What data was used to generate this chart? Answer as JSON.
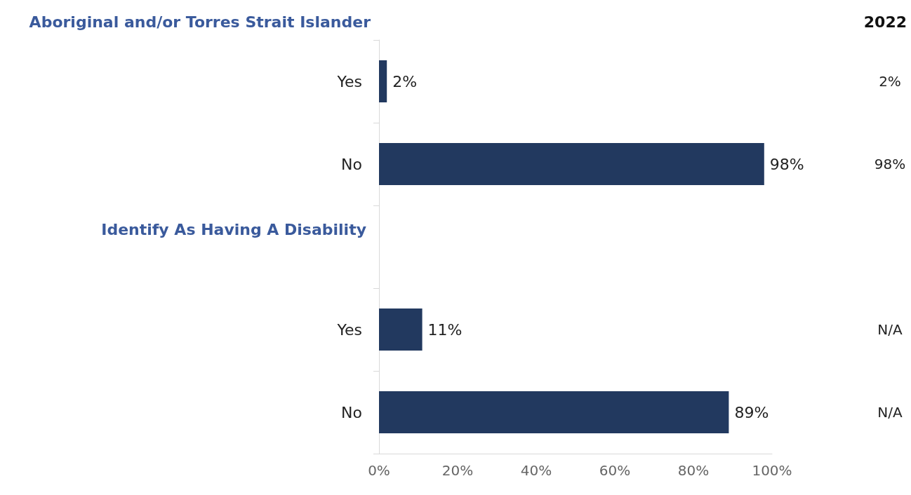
{
  "chart_data": {
    "type": "bar",
    "orientation": "horizontal",
    "categories": [
      "Yes",
      "No",
      null,
      "Yes",
      "No"
    ],
    "values": [
      2,
      98,
      null,
      11,
      89
    ],
    "value_labels": [
      "2%",
      "98%",
      null,
      "11%",
      "89%"
    ],
    "color": "#22395f",
    "xlim": [
      0,
      100
    ],
    "xticks": [
      {
        "value": 0,
        "label": "0%"
      },
      {
        "value": 20,
        "label": "20%"
      },
      {
        "value": 40,
        "label": "40%"
      },
      {
        "value": 60,
        "label": "60%"
      },
      {
        "value": 80,
        "label": "80%"
      },
      {
        "value": 100,
        "label": "100%"
      }
    ],
    "grid": false,
    "annotations": [
      "Aboriginal and/or Torres Strait Islander",
      "Identify As Having A Disability",
      "2022",
      "2%",
      "98%",
      "N/A",
      "N/A"
    ]
  }
}
